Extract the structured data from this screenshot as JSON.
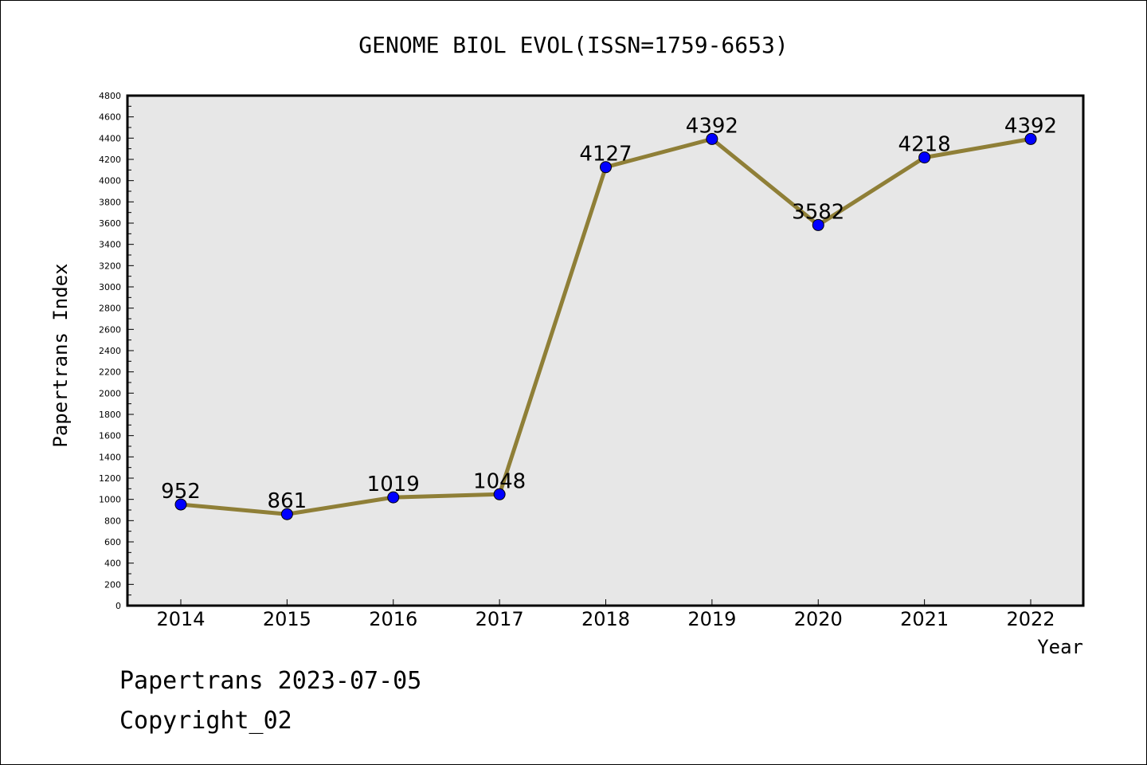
{
  "chart_data": {
    "type": "line",
    "title": "GENOME BIOL EVOL(ISSN=1759-6653)",
    "xlabel": "Year",
    "ylabel": "Papertrans Index",
    "categories": [
      "2014",
      "2015",
      "2016",
      "2017",
      "2018",
      "2019",
      "2020",
      "2021",
      "2022"
    ],
    "series": [
      {
        "values": [
          952,
          861,
          1019,
          1048,
          4127,
          4392,
          3582,
          4218,
          4392
        ]
      }
    ],
    "ylim": [
      0,
      4800
    ],
    "ytick_step": 200,
    "grid": false,
    "colors": {
      "line": "#8f7f37",
      "marker": "#0000ff",
      "plot_bg": "#e7e7e7"
    }
  },
  "footer": {
    "date_line": "Papertrans 2023-07-05",
    "copyright": "Copyright_02"
  }
}
